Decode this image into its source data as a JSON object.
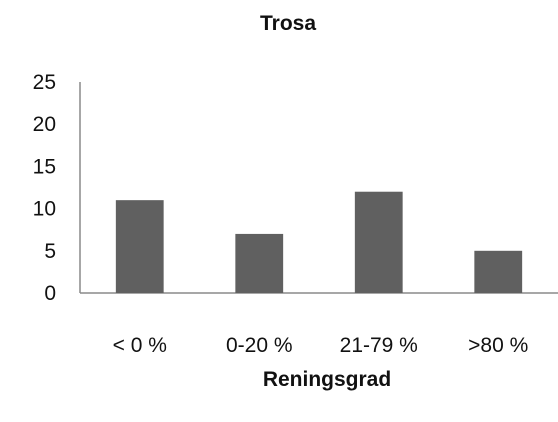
{
  "chart_data": {
    "type": "bar",
    "title": "Trosa",
    "xlabel": "Reningsgrad",
    "ylabel": "",
    "categories": [
      "< 0 %",
      "0-20 %",
      "21-79 %",
      ">80 %"
    ],
    "values": [
      11,
      7,
      12,
      5
    ],
    "ylim": [
      0,
      25
    ],
    "yticks": [
      "0",
      "5",
      "10",
      "15",
      "20",
      "25"
    ],
    "ytick_values": [
      0,
      5,
      10,
      15,
      20,
      25
    ],
    "grid": false,
    "legend": "none",
    "bar_color": "#606060"
  }
}
